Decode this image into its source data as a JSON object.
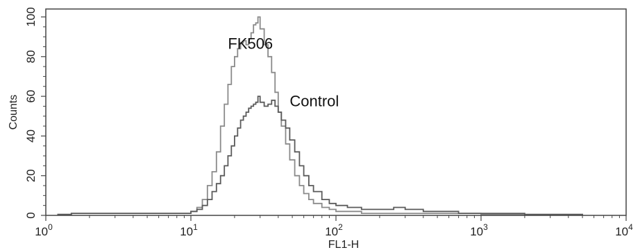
{
  "chart_data": {
    "type": "line",
    "title": "",
    "xlabel": "FL1-H",
    "ylabel": "Counts",
    "xscale": "log",
    "xlim": [
      1,
      10000
    ],
    "ylim": [
      0,
      104
    ],
    "grid": false,
    "legend": "none",
    "x_ticks": [
      {
        "value": 1,
        "base": "10",
        "exp": "0"
      },
      {
        "value": 10,
        "base": "10",
        "exp": "1"
      },
      {
        "value": 100,
        "base": "10",
        "exp": "2"
      },
      {
        "value": 1000,
        "base": "10",
        "exp": "3"
      },
      {
        "value": 10000,
        "base": "10",
        "exp": "4"
      }
    ],
    "y_ticks": [
      "0",
      "20",
      "40",
      "60",
      "80",
      "100"
    ],
    "annotations": [
      {
        "text": "FK506",
        "x": 18,
        "y": 84
      },
      {
        "text": "Control",
        "x": 48,
        "y": 55
      }
    ],
    "series": [
      {
        "color": "#8a8a8a",
        "x": [
          1.2,
          1.5,
          2,
          3,
          4,
          5,
          6,
          7,
          8,
          9,
          10,
          11,
          12,
          13,
          14,
          15,
          16,
          17,
          18,
          19,
          20,
          21,
          22,
          23,
          24,
          25,
          26,
          27,
          28,
          29,
          30,
          32,
          34,
          36,
          38,
          40,
          42,
          45,
          48,
          52,
          56,
          60,
          65,
          70,
          80,
          90,
          100,
          120,
          150,
          200,
          300,
          500,
          700,
          1000,
          2000,
          5000
        ],
        "y": [
          0.5,
          1,
          1,
          1,
          1,
          1,
          1,
          1,
          1,
          1,
          2,
          4,
          8,
          15,
          22,
          32,
          45,
          56,
          66,
          75,
          80,
          84,
          87,
          88,
          86,
          89,
          92,
          96,
          97,
          100,
          94,
          86,
          80,
          72,
          62,
          52,
          45,
          36,
          28,
          20,
          15,
          11,
          8,
          6,
          4,
          3,
          2,
          2,
          1,
          1,
          1,
          1,
          1,
          0.5,
          0.5,
          0
        ]
      },
      {
        "color": "#5a5a5a",
        "x": [
          1.2,
          1.5,
          2,
          3,
          5,
          7,
          10,
          11,
          12,
          13,
          14,
          15,
          16,
          17,
          18,
          19,
          20,
          21,
          22,
          23,
          24,
          25,
          26,
          27,
          28,
          29,
          30,
          32,
          34,
          36,
          38,
          40,
          42,
          45,
          48,
          52,
          56,
          60,
          65,
          70,
          80,
          90,
          100,
          120,
          150,
          200,
          250,
          300,
          400,
          500,
          700,
          1000,
          2000,
          5000
        ],
        "y": [
          0.5,
          1,
          1,
          1,
          1,
          1,
          2,
          3,
          5,
          8,
          12,
          16,
          20,
          25,
          30,
          35,
          40,
          44,
          48,
          50,
          52,
          54,
          55,
          56,
          57,
          60,
          57,
          55,
          56,
          58,
          55,
          52,
          48,
          44,
          38,
          32,
          25,
          20,
          15,
          12,
          8,
          6,
          5,
          4,
          3,
          3,
          4,
          3,
          2,
          2,
          1,
          1,
          0.5,
          0
        ]
      }
    ]
  }
}
